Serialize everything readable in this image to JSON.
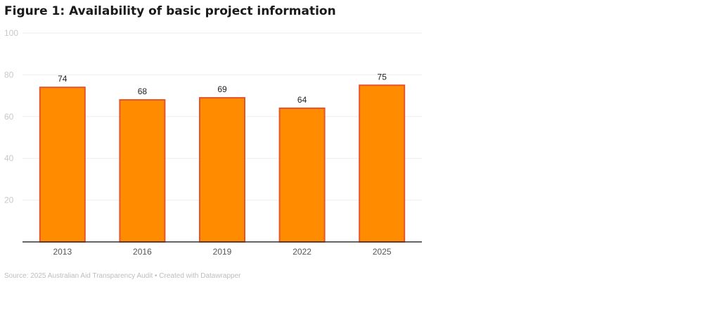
{
  "colors": {
    "bar_fill": "#FF8C00",
    "bar_stroke": "#E8542A",
    "grid": "#eeeeee",
    "axis": "#333333"
  },
  "chart_data": {
    "type": "bar",
    "title": "Figure 1: Availability of basic project information",
    "categories": [
      "2013",
      "2016",
      "2019",
      "2022",
      "2025"
    ],
    "values": [
      74,
      68,
      69,
      64,
      75
    ],
    "data_labels": [
      "74",
      "68",
      "69",
      "64",
      "75"
    ],
    "yticks": [
      "20",
      "40",
      "60",
      "80",
      "100"
    ],
    "ylim": [
      0,
      100
    ],
    "grid": true,
    "legend": "none",
    "source": "Source: 2025 Australian Aid Transparency Audit • Created with Datawrapper"
  }
}
